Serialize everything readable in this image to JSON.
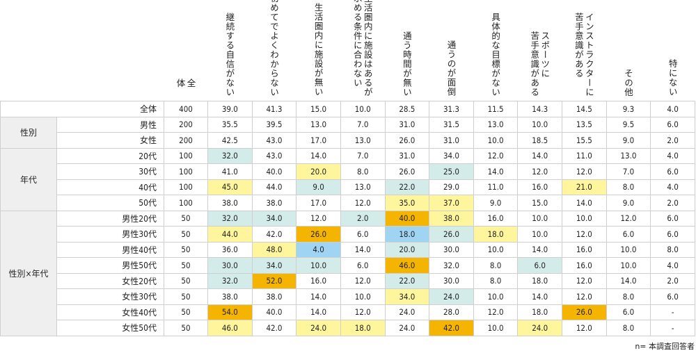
{
  "columns": {
    "total": "全\n体",
    "items": [
      "継続する自信がない",
      "初めてでよくわからない",
      "生活圏内に施設が無い",
      "生活圏内に施設はあるが\n求める条件に合わない",
      "通う時間が無い",
      "通うのが面倒",
      "具体的な目標がない",
      "スポーツに\n苦手意識がある",
      "インストラクターに\n苦手意識がある",
      "その他",
      "特にない"
    ]
  },
  "colors": {
    "teal": "#d3ebe9",
    "yellow": "#fff59d",
    "orange": "#f5b400",
    "blue": "#9fd4f2"
  },
  "groups": [
    {
      "name": "",
      "rows": [
        {
          "label": "全体",
          "n": "400",
          "values": [
            "39.0",
            "41.3",
            "15.0",
            "10.0",
            "28.5",
            "31.3",
            "11.5",
            "14.3",
            "14.5",
            "9.3",
            "4.0"
          ],
          "highlights": [
            "",
            "",
            "",
            "",
            "",
            "",
            "",
            "",
            "",
            "",
            ""
          ]
        }
      ]
    },
    {
      "name": "性別",
      "rows": [
        {
          "label": "男性",
          "n": "200",
          "values": [
            "35.5",
            "39.5",
            "13.0",
            "7.0",
            "31.0",
            "31.5",
            "13.0",
            "10.0",
            "13.5",
            "9.5",
            "6.0"
          ],
          "highlights": [
            "",
            "",
            "",
            "",
            "",
            "",
            "",
            "",
            "",
            "",
            ""
          ]
        },
        {
          "label": "女性",
          "n": "200",
          "values": [
            "42.5",
            "43.0",
            "17.0",
            "13.0",
            "26.0",
            "31.0",
            "10.0",
            "18.5",
            "15.5",
            "9.0",
            "2.0"
          ],
          "highlights": [
            "",
            "",
            "",
            "",
            "",
            "",
            "",
            "",
            "",
            "",
            ""
          ]
        }
      ]
    },
    {
      "name": "年代",
      "rows": [
        {
          "label": "20代",
          "n": "100",
          "values": [
            "32.0",
            "43.0",
            "14.0",
            "7.0",
            "31.0",
            "34.0",
            "12.0",
            "14.0",
            "11.0",
            "13.0",
            "4.0"
          ],
          "highlights": [
            "teal",
            "",
            "",
            "",
            "",
            "",
            "",
            "",
            "",
            "",
            ""
          ]
        },
        {
          "label": "30代",
          "n": "100",
          "values": [
            "41.0",
            "40.0",
            "20.0",
            "8.0",
            "26.0",
            "25.0",
            "14.0",
            "12.0",
            "12.0",
            "7.0",
            "6.0"
          ],
          "highlights": [
            "",
            "",
            "yellow",
            "",
            "",
            "teal",
            "",
            "",
            "",
            "",
            ""
          ]
        },
        {
          "label": "40代",
          "n": "100",
          "values": [
            "45.0",
            "44.0",
            "9.0",
            "13.0",
            "22.0",
            "29.0",
            "11.0",
            "16.0",
            "21.0",
            "8.0",
            "4.0"
          ],
          "highlights": [
            "yellow",
            "",
            "teal",
            "",
            "teal",
            "",
            "",
            "",
            "yellow",
            "",
            ""
          ]
        },
        {
          "label": "50代",
          "n": "100",
          "values": [
            "38.0",
            "38.0",
            "17.0",
            "12.0",
            "35.0",
            "37.0",
            "9.0",
            "15.0",
            "14.0",
            "9.0",
            "2.0"
          ],
          "highlights": [
            "",
            "",
            "",
            "",
            "yellow",
            "yellow",
            "",
            "",
            "",
            "",
            ""
          ]
        }
      ]
    },
    {
      "name": "性別×年代",
      "rows": [
        {
          "label": "男性20代",
          "n": "50",
          "values": [
            "32.0",
            "34.0",
            "12.0",
            "2.0",
            "40.0",
            "38.0",
            "16.0",
            "10.0",
            "10.0",
            "12.0",
            "6.0"
          ],
          "highlights": [
            "teal",
            "teal",
            "",
            "teal",
            "orange",
            "yellow",
            "",
            "",
            "",
            "",
            ""
          ]
        },
        {
          "label": "男性30代",
          "n": "50",
          "values": [
            "44.0",
            "42.0",
            "26.0",
            "6.0",
            "18.0",
            "26.0",
            "18.0",
            "10.0",
            "12.0",
            "6.0",
            "6.0"
          ],
          "highlights": [
            "yellow",
            "",
            "orange",
            "",
            "blue",
            "teal",
            "yellow",
            "",
            "",
            "",
            ""
          ]
        },
        {
          "label": "男性40代",
          "n": "50",
          "values": [
            "36.0",
            "48.0",
            "4.0",
            "14.0",
            "20.0",
            "30.0",
            "10.0",
            "14.0",
            "16.0",
            "10.0",
            "8.0"
          ],
          "highlights": [
            "",
            "yellow",
            "blue",
            "",
            "teal",
            "",
            "",
            "",
            "",
            "",
            ""
          ]
        },
        {
          "label": "男性50代",
          "n": "50",
          "values": [
            "30.0",
            "34.0",
            "10.0",
            "6.0",
            "46.0",
            "32.0",
            "8.0",
            "6.0",
            "16.0",
            "10.0",
            "4.0"
          ],
          "highlights": [
            "teal",
            "teal",
            "teal",
            "",
            "orange",
            "",
            "",
            "teal",
            "",
            "",
            ""
          ]
        },
        {
          "label": "女性20代",
          "n": "50",
          "values": [
            "32.0",
            "52.0",
            "16.0",
            "12.0",
            "22.0",
            "30.0",
            "8.0",
            "18.0",
            "12.0",
            "14.0",
            "2.0"
          ],
          "highlights": [
            "teal",
            "orange",
            "",
            "",
            "teal",
            "",
            "",
            "",
            "",
            "",
            ""
          ]
        },
        {
          "label": "女性30代",
          "n": "50",
          "values": [
            "38.0",
            "38.0",
            "14.0",
            "10.0",
            "34.0",
            "24.0",
            "10.0",
            "14.0",
            "12.0",
            "8.0",
            "6.0"
          ],
          "highlights": [
            "",
            "",
            "",
            "",
            "yellow",
            "teal",
            "",
            "",
            "",
            "",
            ""
          ]
        },
        {
          "label": "女性40代",
          "n": "50",
          "values": [
            "54.0",
            "40.0",
            "14.0",
            "12.0",
            "24.0",
            "28.0",
            "12.0",
            "18.0",
            "26.0",
            "6.0",
            "-"
          ],
          "highlights": [
            "orange",
            "",
            "",
            "",
            "",
            "",
            "",
            "",
            "orange",
            "",
            ""
          ]
        },
        {
          "label": "女性50代",
          "n": "50",
          "values": [
            "46.0",
            "42.0",
            "24.0",
            "18.0",
            "24.0",
            "42.0",
            "10.0",
            "24.0",
            "12.0",
            "8.0",
            "-"
          ],
          "highlights": [
            "yellow",
            "",
            "yellow",
            "yellow",
            "",
            "orange",
            "",
            "yellow",
            "",
            "",
            ""
          ]
        }
      ]
    }
  ],
  "note": "n= 本調査回答者"
}
